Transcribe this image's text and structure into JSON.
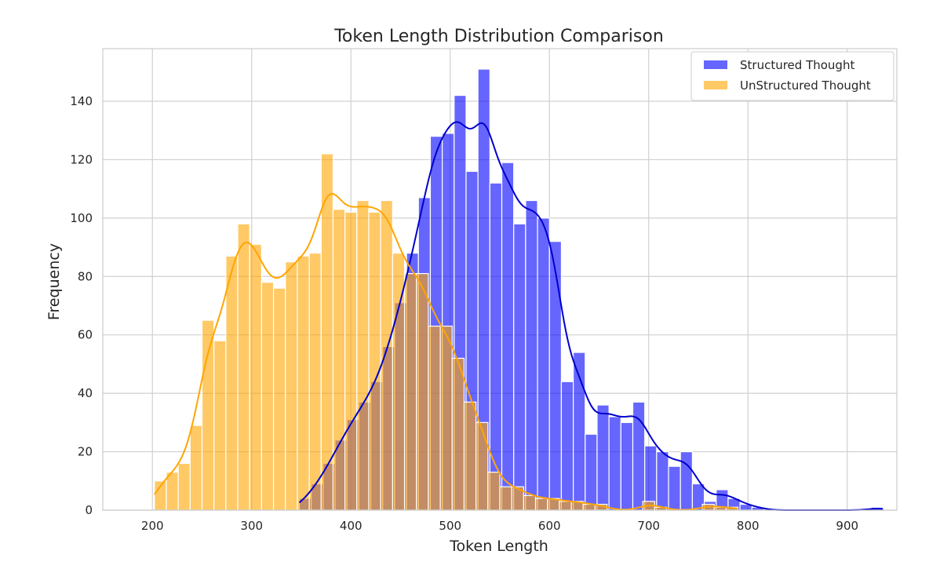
{
  "chart_data": {
    "type": "bar",
    "title": "Token Length Distribution Comparison",
    "xlabel": "Token Length",
    "ylabel": "Frequency",
    "xlim": [
      150,
      950
    ],
    "ylim": [
      0,
      158
    ],
    "xticks": [
      200,
      300,
      400,
      500,
      600,
      700,
      800,
      900
    ],
    "yticks": [
      0,
      20,
      40,
      60,
      80,
      100,
      120,
      140
    ],
    "grid": true,
    "legend_position": "top-right",
    "bin_width": 12,
    "series": [
      {
        "name": "Structured Thought",
        "color": "#0000ff",
        "line_color": "#0000cc",
        "bin_start": 348,
        "counts": [
          4,
          9,
          16,
          24,
          31,
          37,
          44,
          56,
          71,
          88,
          107,
          128,
          129,
          142,
          116,
          151,
          112,
          119,
          98,
          106,
          100,
          92,
          44,
          54,
          26,
          36,
          32,
          30,
          37,
          22,
          20,
          15,
          20,
          9,
          3,
          7,
          4,
          2,
          1,
          0,
          0,
          0,
          0,
          0,
          0,
          0,
          0,
          0,
          1
        ]
      },
      {
        "name": "UnStructured Thought",
        "color": "#ffa500",
        "line_color": "#ffa500",
        "bin_start": 202,
        "counts": [
          10,
          13,
          16,
          29,
          65,
          58,
          87,
          98,
          91,
          78,
          76,
          85,
          87,
          88,
          122,
          103,
          102,
          106,
          102,
          106,
          88,
          81,
          81,
          63,
          63,
          52,
          37,
          30,
          13,
          8,
          8,
          5,
          4,
          4,
          3,
          3,
          2,
          2,
          0,
          0,
          0,
          3,
          1,
          0,
          0,
          0,
          2,
          1,
          1
        ]
      }
    ]
  }
}
